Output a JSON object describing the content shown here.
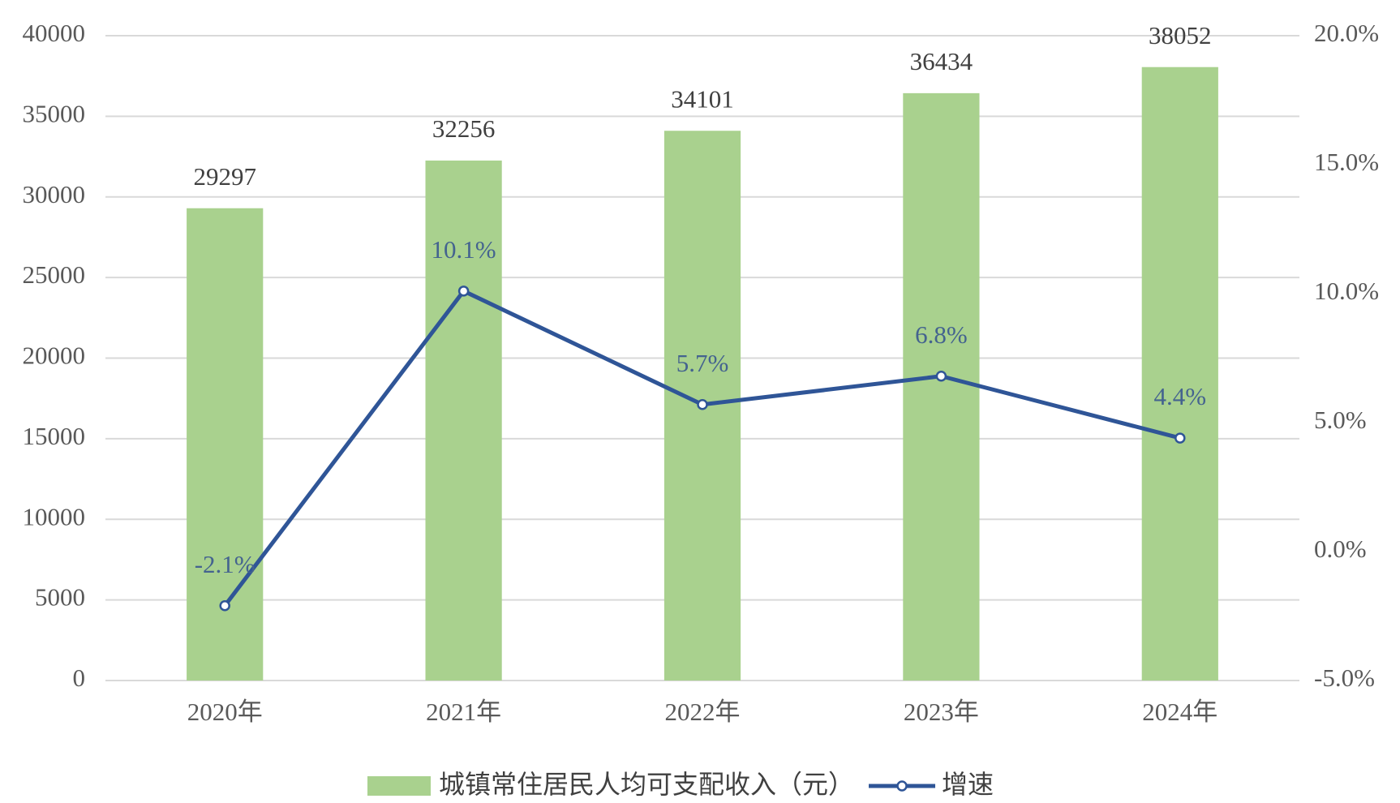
{
  "chart_data": {
    "type": "combo",
    "categories": [
      "2020年",
      "2021年",
      "2022年",
      "2023年",
      "2024年"
    ],
    "series": [
      {
        "name": "城镇常住居民人均可支配收入（元）",
        "type": "bar",
        "color": "#a9d18e",
        "values": [
          29297,
          32256,
          34101,
          36434,
          38052
        ]
      },
      {
        "name": "增速",
        "type": "line",
        "axis": "y2",
        "color": "#2f5597",
        "values": [
          -2.1,
          10.1,
          5.7,
          6.8,
          4.4
        ],
        "value_labels": [
          "-2.1%",
          "10.1%",
          "5.7%",
          "6.8%",
          "4.4%"
        ]
      }
    ],
    "ylim": [
      0,
      40000
    ],
    "yticks": [
      0,
      5000,
      10000,
      15000,
      20000,
      25000,
      30000,
      35000,
      40000
    ],
    "y2lim": [
      -5,
      20
    ],
    "y2ticks": [
      {
        "value": -5,
        "label": "-5.0%"
      },
      {
        "value": 0,
        "label": "0.0%"
      },
      {
        "value": 5,
        "label": "5.0%"
      },
      {
        "value": 10,
        "label": "10.0%"
      },
      {
        "value": 15,
        "label": "15.0%"
      },
      {
        "value": 20,
        "label": "20.0%"
      }
    ],
    "grid": true,
    "legend": "bottom"
  }
}
